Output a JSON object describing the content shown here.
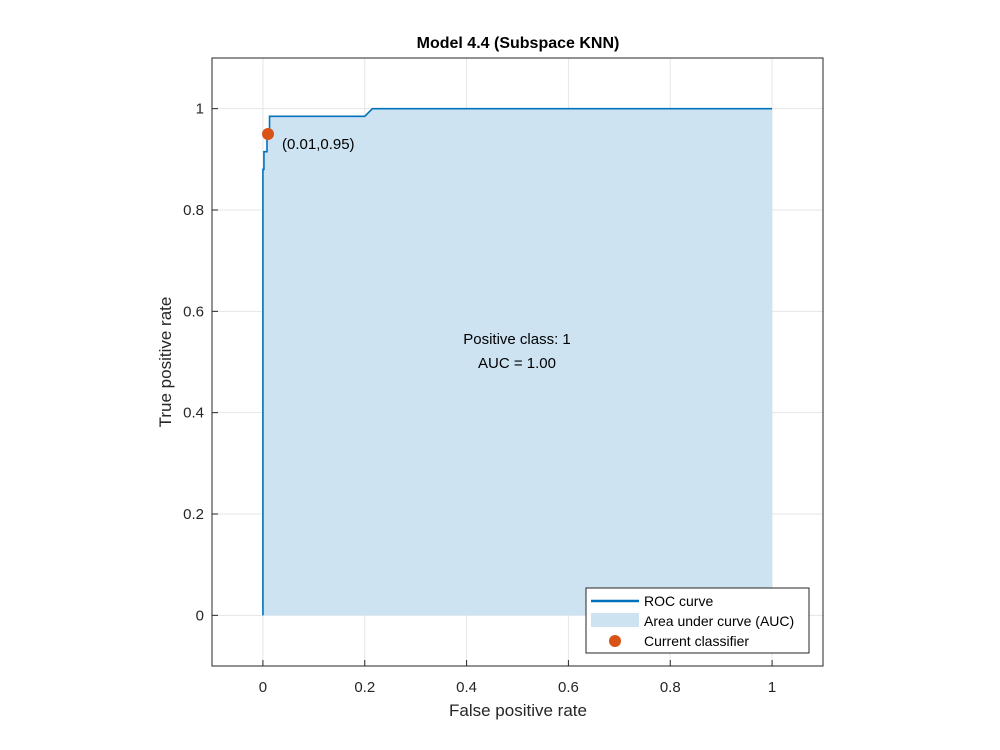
{
  "chart_data": {
    "type": "line",
    "title": "Model 4.4 (Subspace KNN)",
    "xlabel": "False positive rate",
    "ylabel": "True positive rate",
    "xlim": [
      -0.1,
      1.1
    ],
    "ylim": [
      -0.1,
      1.1
    ],
    "xticks": [
      0,
      0.2,
      0.4,
      0.6,
      0.8,
      1
    ],
    "xtick_labels": [
      "0",
      "0.2",
      "0.4",
      "0.6",
      "0.8",
      "1"
    ],
    "yticks": [
      0,
      0.2,
      0.4,
      0.6,
      0.8,
      1
    ],
    "ytick_labels": [
      "0",
      "0.2",
      "0.4",
      "0.6",
      "0.8",
      "1"
    ],
    "grid": true,
    "legend_position": "bottom-right",
    "series": [
      {
        "name": "ROC curve",
        "color": "#0072BD",
        "x": [
          0,
          0,
          0.002,
          0.002,
          0.008,
          0.008,
          0.013,
          0.013,
          0.2,
          0.215,
          1
        ],
        "y": [
          0,
          0.88,
          0.88,
          0.915,
          0.915,
          0.95,
          0.95,
          0.985,
          0.985,
          1.0,
          1.0
        ]
      },
      {
        "name": "Area under curve (AUC)",
        "color": "#CDE3F2"
      },
      {
        "name": "Current classifier",
        "color": "#D95319",
        "x": [
          0.01
        ],
        "y": [
          0.95
        ]
      }
    ],
    "annotations": {
      "point_label": "(0.01,0.95)",
      "class_label": "Positive class: 1",
      "auc_label": "AUC = 1.00"
    }
  }
}
